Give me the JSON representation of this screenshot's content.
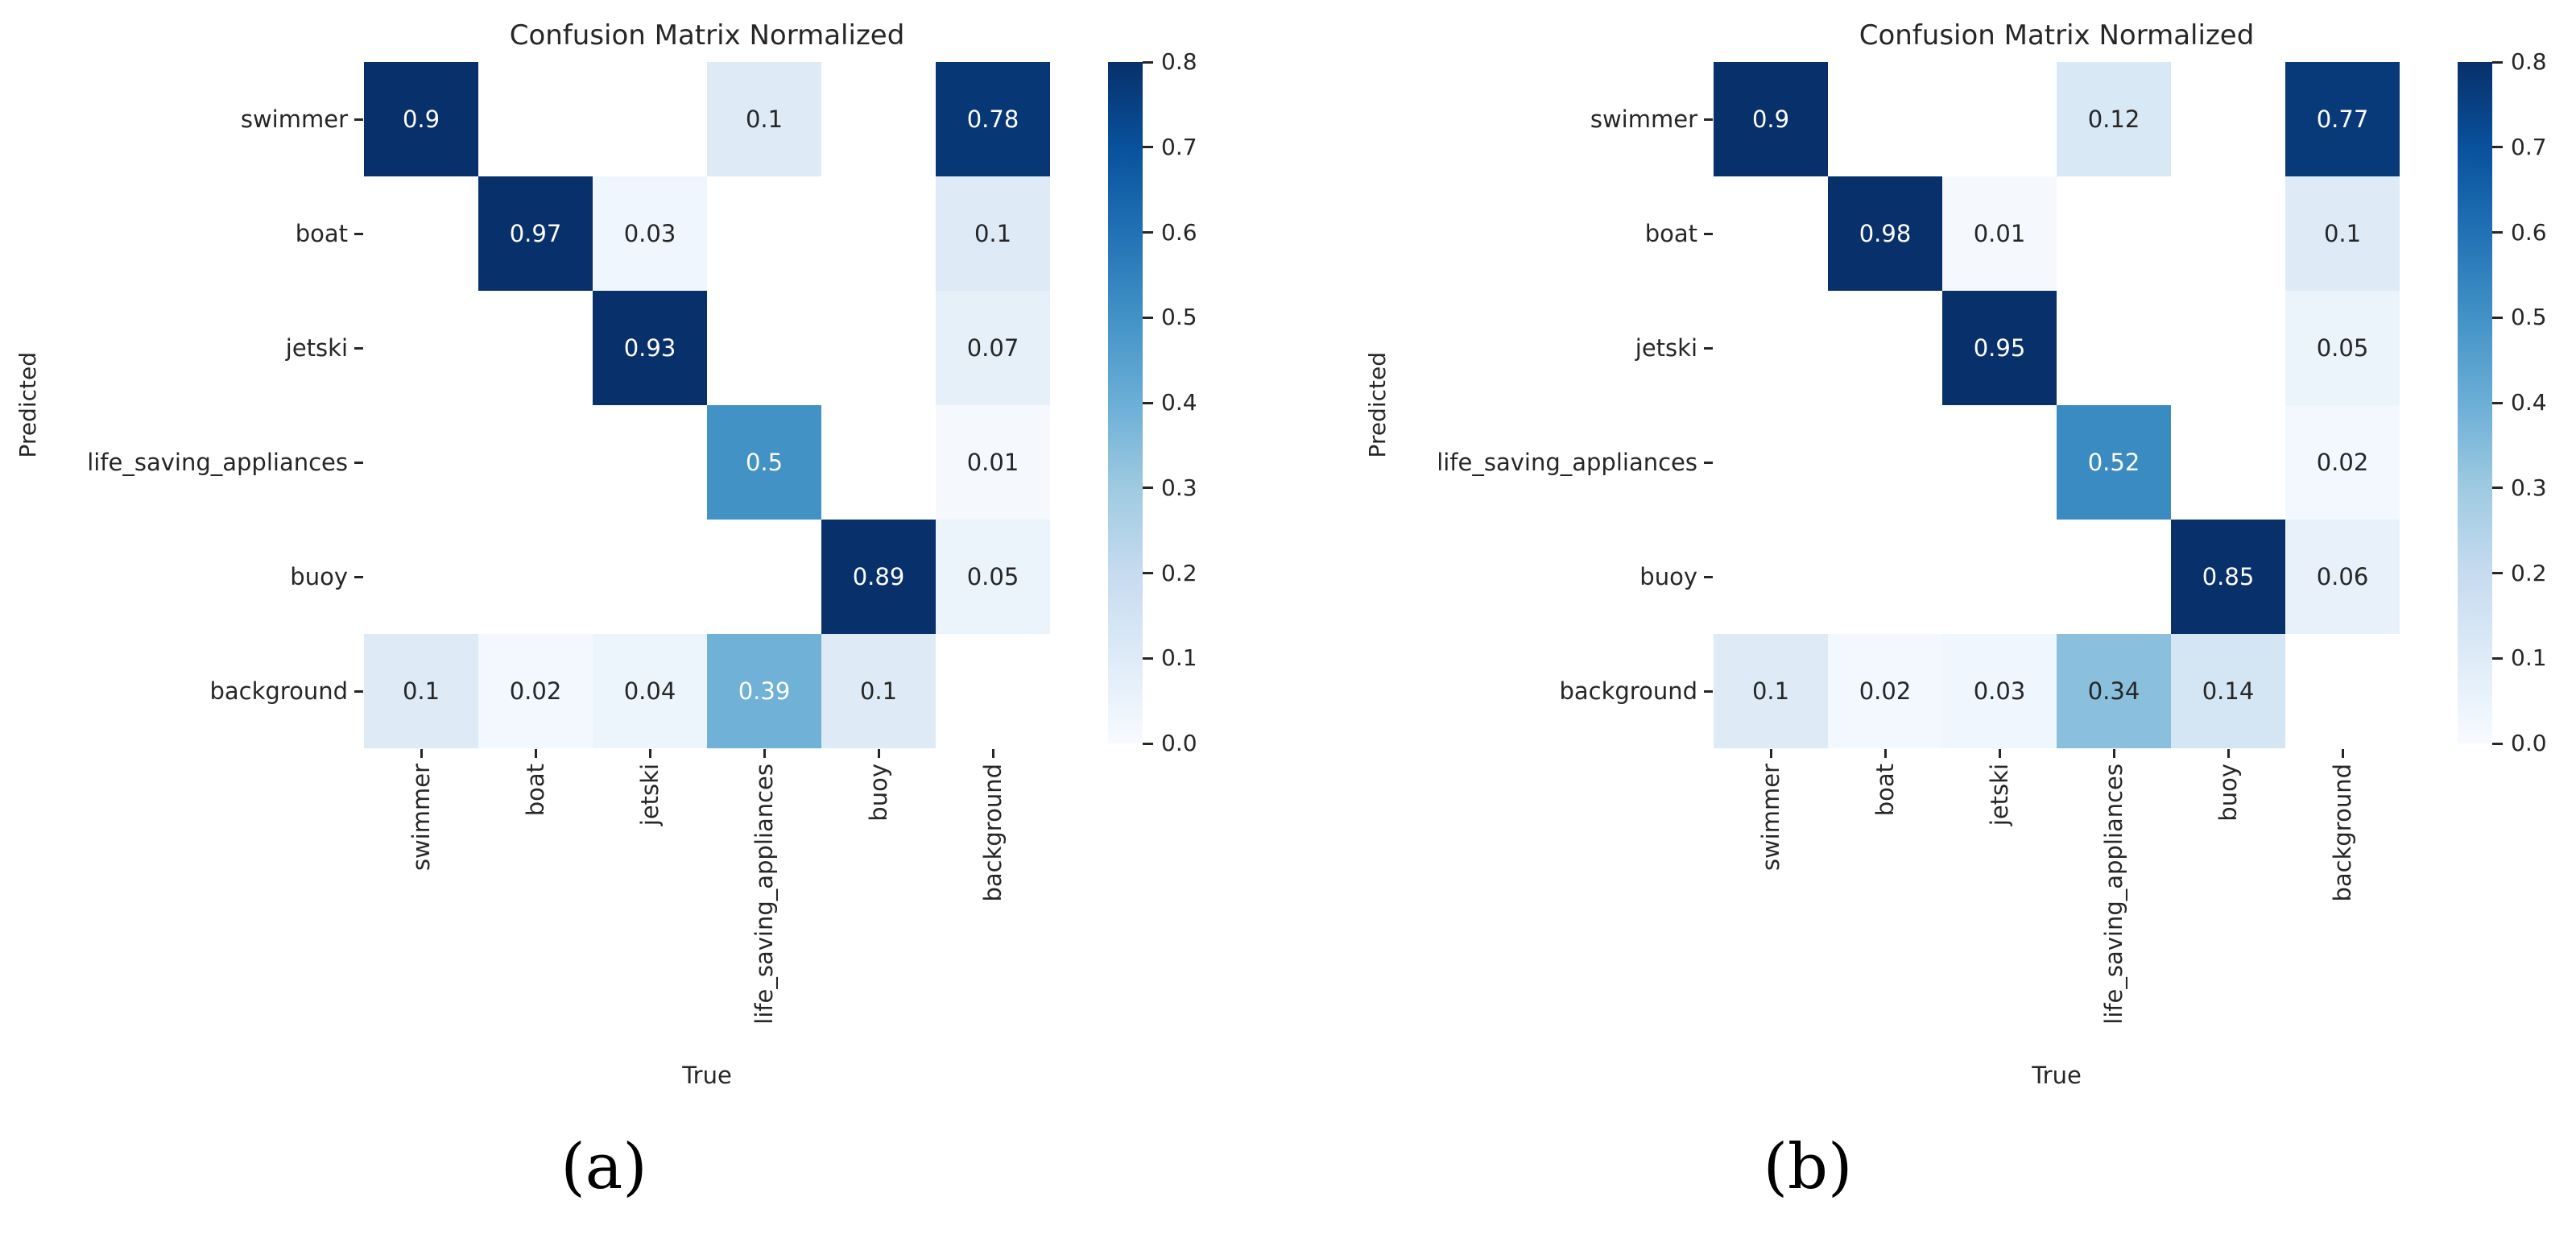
{
  "figure": {
    "background": "#ffffff"
  },
  "colors": {
    "cmap": [
      "#f7fbff",
      "#deebf7",
      "#c6dbef",
      "#9ecae1",
      "#6baed6",
      "#4292c6",
      "#2171b5",
      "#08519c",
      "#08306b"
    ],
    "dark_text": "#262626",
    "light_text": "#ffffff",
    "blank_cell": "#ffffff",
    "tick": "#262626"
  },
  "chart_data": [
    {
      "type": "heatmap",
      "title": "Confusion Matrix Normalized",
      "xlabel": "True",
      "ylabel": "Predicted",
      "caption": "(a)",
      "x_ticklabels": [
        "swimmer",
        "boat",
        "jetski",
        "life_saving_appliances",
        "buoy",
        "background"
      ],
      "y_ticklabels": [
        "swimmer",
        "boat",
        "jetski",
        "life_saving_appliances",
        "buoy",
        "background"
      ],
      "vmin": 0.0,
      "vmax": 0.8,
      "colorbar_ticks": [
        "0.8",
        "0.7",
        "0.6",
        "0.5",
        "0.4",
        "0.3",
        "0.2",
        "0.1",
        "0.0"
      ],
      "legend_position": "right",
      "matrix": [
        [
          0.9,
          null,
          null,
          0.1,
          null,
          0.78
        ],
        [
          null,
          0.97,
          0.03,
          null,
          null,
          0.1
        ],
        [
          null,
          null,
          0.93,
          null,
          null,
          0.07
        ],
        [
          null,
          null,
          null,
          0.5,
          null,
          0.01
        ],
        [
          null,
          null,
          null,
          null,
          0.89,
          0.05
        ],
        [
          0.1,
          0.02,
          0.04,
          0.39,
          0.1,
          null
        ]
      ]
    },
    {
      "type": "heatmap",
      "title": "Confusion Matrix Normalized",
      "xlabel": "True",
      "ylabel": "Predicted",
      "caption": "(b)",
      "x_ticklabels": [
        "swimmer",
        "boat",
        "jetski",
        "life_saving_appliances",
        "buoy",
        "background"
      ],
      "y_ticklabels": [
        "swimmer",
        "boat",
        "jetski",
        "life_saving_appliances",
        "buoy",
        "background"
      ],
      "vmin": 0.0,
      "vmax": 0.8,
      "colorbar_ticks": [
        "0.8",
        "0.7",
        "0.6",
        "0.5",
        "0.4",
        "0.3",
        "0.2",
        "0.1",
        "0.0"
      ],
      "legend_position": "right",
      "matrix": [
        [
          0.9,
          null,
          null,
          0.12,
          null,
          0.77
        ],
        [
          null,
          0.98,
          0.01,
          null,
          null,
          0.1
        ],
        [
          null,
          null,
          0.95,
          null,
          null,
          0.05
        ],
        [
          null,
          null,
          null,
          0.52,
          null,
          0.02
        ],
        [
          null,
          null,
          null,
          null,
          0.85,
          0.06
        ],
        [
          0.1,
          0.02,
          0.03,
          0.34,
          0.14,
          null
        ]
      ]
    }
  ]
}
